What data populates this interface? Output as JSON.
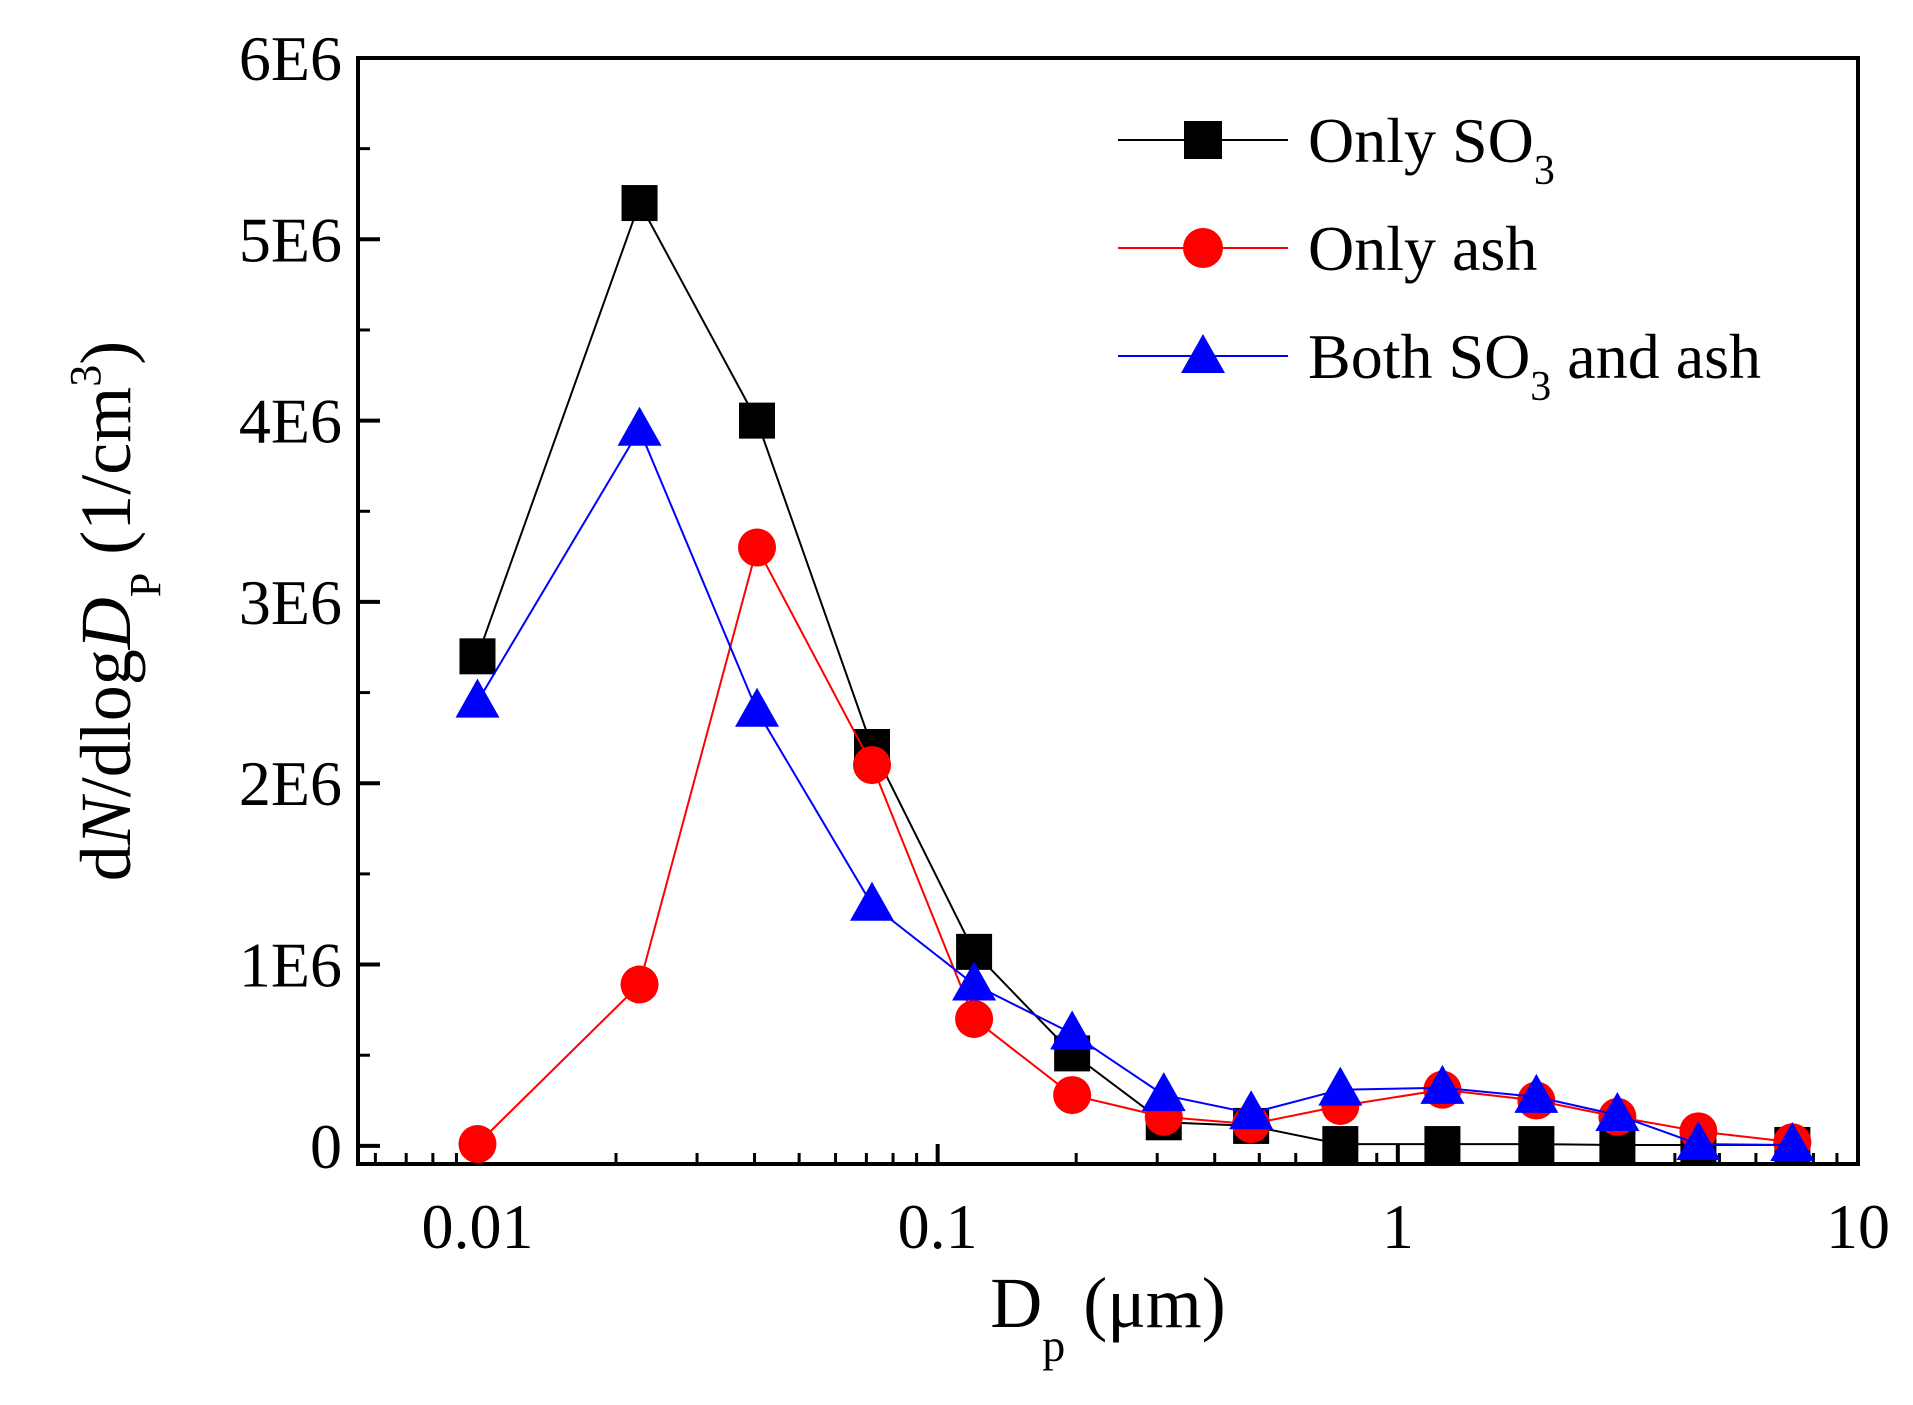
{
  "chart_data": {
    "type": "line",
    "xscale": "log",
    "xlim": [
      0.0055,
      10
    ],
    "ylim": [
      -100000,
      6000000
    ],
    "x_ticks": [
      {
        "value": 0.01,
        "label": "0.01"
      },
      {
        "value": 0.1,
        "label": "0.1"
      },
      {
        "value": 1,
        "label": "1"
      },
      {
        "value": 10,
        "label": "10"
      }
    ],
    "y_ticks": [
      {
        "value": 0,
        "label": "0"
      },
      {
        "value": 1000000,
        "label": "1E6"
      },
      {
        "value": 2000000,
        "label": "2E6"
      },
      {
        "value": 3000000,
        "label": "3E6"
      },
      {
        "value": 4000000,
        "label": "4E6"
      },
      {
        "value": 5000000,
        "label": "5E6"
      },
      {
        "value": 6000000,
        "label": "6E6"
      }
    ],
    "xlabel": {
      "main": "D",
      "sub": "p",
      "rest": " (μm)"
    },
    "ylabel": {
      "part1": "d",
      "italic1": "N",
      "part2": "/dlog",
      "italic2": "D",
      "sub": "P",
      "part3": " (1/cm",
      "sup": "3",
      "part4": ")"
    },
    "legend_position": "top-right",
    "grid": false,
    "series": [
      {
        "name": "Only SO3",
        "legend": {
          "main": "Only SO",
          "sub": "3",
          "rest": ""
        },
        "color": "#000000",
        "marker": "square",
        "x": [
          0.01,
          0.0225,
          0.0405,
          0.072,
          0.12,
          0.196,
          0.31,
          0.48,
          0.75,
          1.25,
          2.0,
          3.0,
          4.5,
          7.2
        ],
        "y": [
          2700000,
          5200000,
          4000000,
          2200000,
          1070000,
          510000,
          130000,
          110000,
          10000,
          10000,
          10000,
          5000,
          5000,
          5000
        ]
      },
      {
        "name": "Only ash",
        "legend": {
          "main": "Only ash",
          "sub": "",
          "rest": ""
        },
        "color": "#ff0000",
        "marker": "circle",
        "x": [
          0.01,
          0.0225,
          0.0405,
          0.072,
          0.12,
          0.196,
          0.31,
          0.48,
          0.75,
          1.25,
          2.0,
          3.0,
          4.5,
          7.2
        ],
        "y": [
          10000,
          890000,
          3300000,
          2100000,
          700000,
          280000,
          160000,
          120000,
          220000,
          310000,
          250000,
          160000,
          80000,
          20000
        ]
      },
      {
        "name": "Both SO3 and ash",
        "legend": {
          "main": "Both SO",
          "sub": "3",
          "rest": " and ash"
        },
        "color": "#0000ff",
        "marker": "triangle",
        "x": [
          0.01,
          0.0225,
          0.0405,
          0.072,
          0.12,
          0.196,
          0.31,
          0.48,
          0.75,
          1.25,
          2.0,
          3.0,
          4.5,
          7.2
        ],
        "y": [
          2450000,
          3950000,
          2400000,
          1330000,
          890000,
          620000,
          280000,
          180000,
          310000,
          320000,
          270000,
          170000,
          10000,
          5000
        ]
      }
    ]
  }
}
